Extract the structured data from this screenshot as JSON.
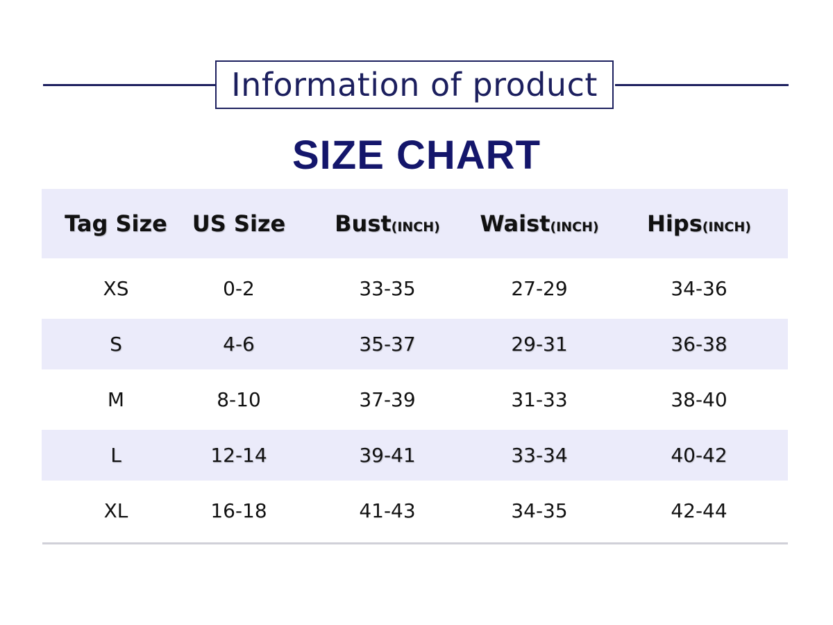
{
  "header_title": "Information of product",
  "chart_title": "SIZE CHART",
  "columns": [
    {
      "label": "Tag Size",
      "unit": ""
    },
    {
      "label": "US Size",
      "unit": ""
    },
    {
      "label": "Bust",
      "unit": "(INCH)"
    },
    {
      "label": "Waist",
      "unit": "(INCH)"
    },
    {
      "label": "Hips",
      "unit": "(INCH)"
    }
  ],
  "rows": [
    [
      "XS",
      "0-2",
      "33-35",
      "27-29",
      "34-36"
    ],
    [
      "S",
      "4-6",
      "35-37",
      "29-31",
      "36-38"
    ],
    [
      "M",
      "8-10",
      "37-39",
      "31-33",
      "38-40"
    ],
    [
      "L",
      "12-14",
      "39-41",
      "33-34",
      "40-42"
    ],
    [
      "XL",
      "16-18",
      "41-43",
      "34-35",
      "42-44"
    ]
  ],
  "colors": {
    "title_navy": "#1c1f5e",
    "heading_navy": "#14166b",
    "band_lavender": "#ebebfa"
  }
}
